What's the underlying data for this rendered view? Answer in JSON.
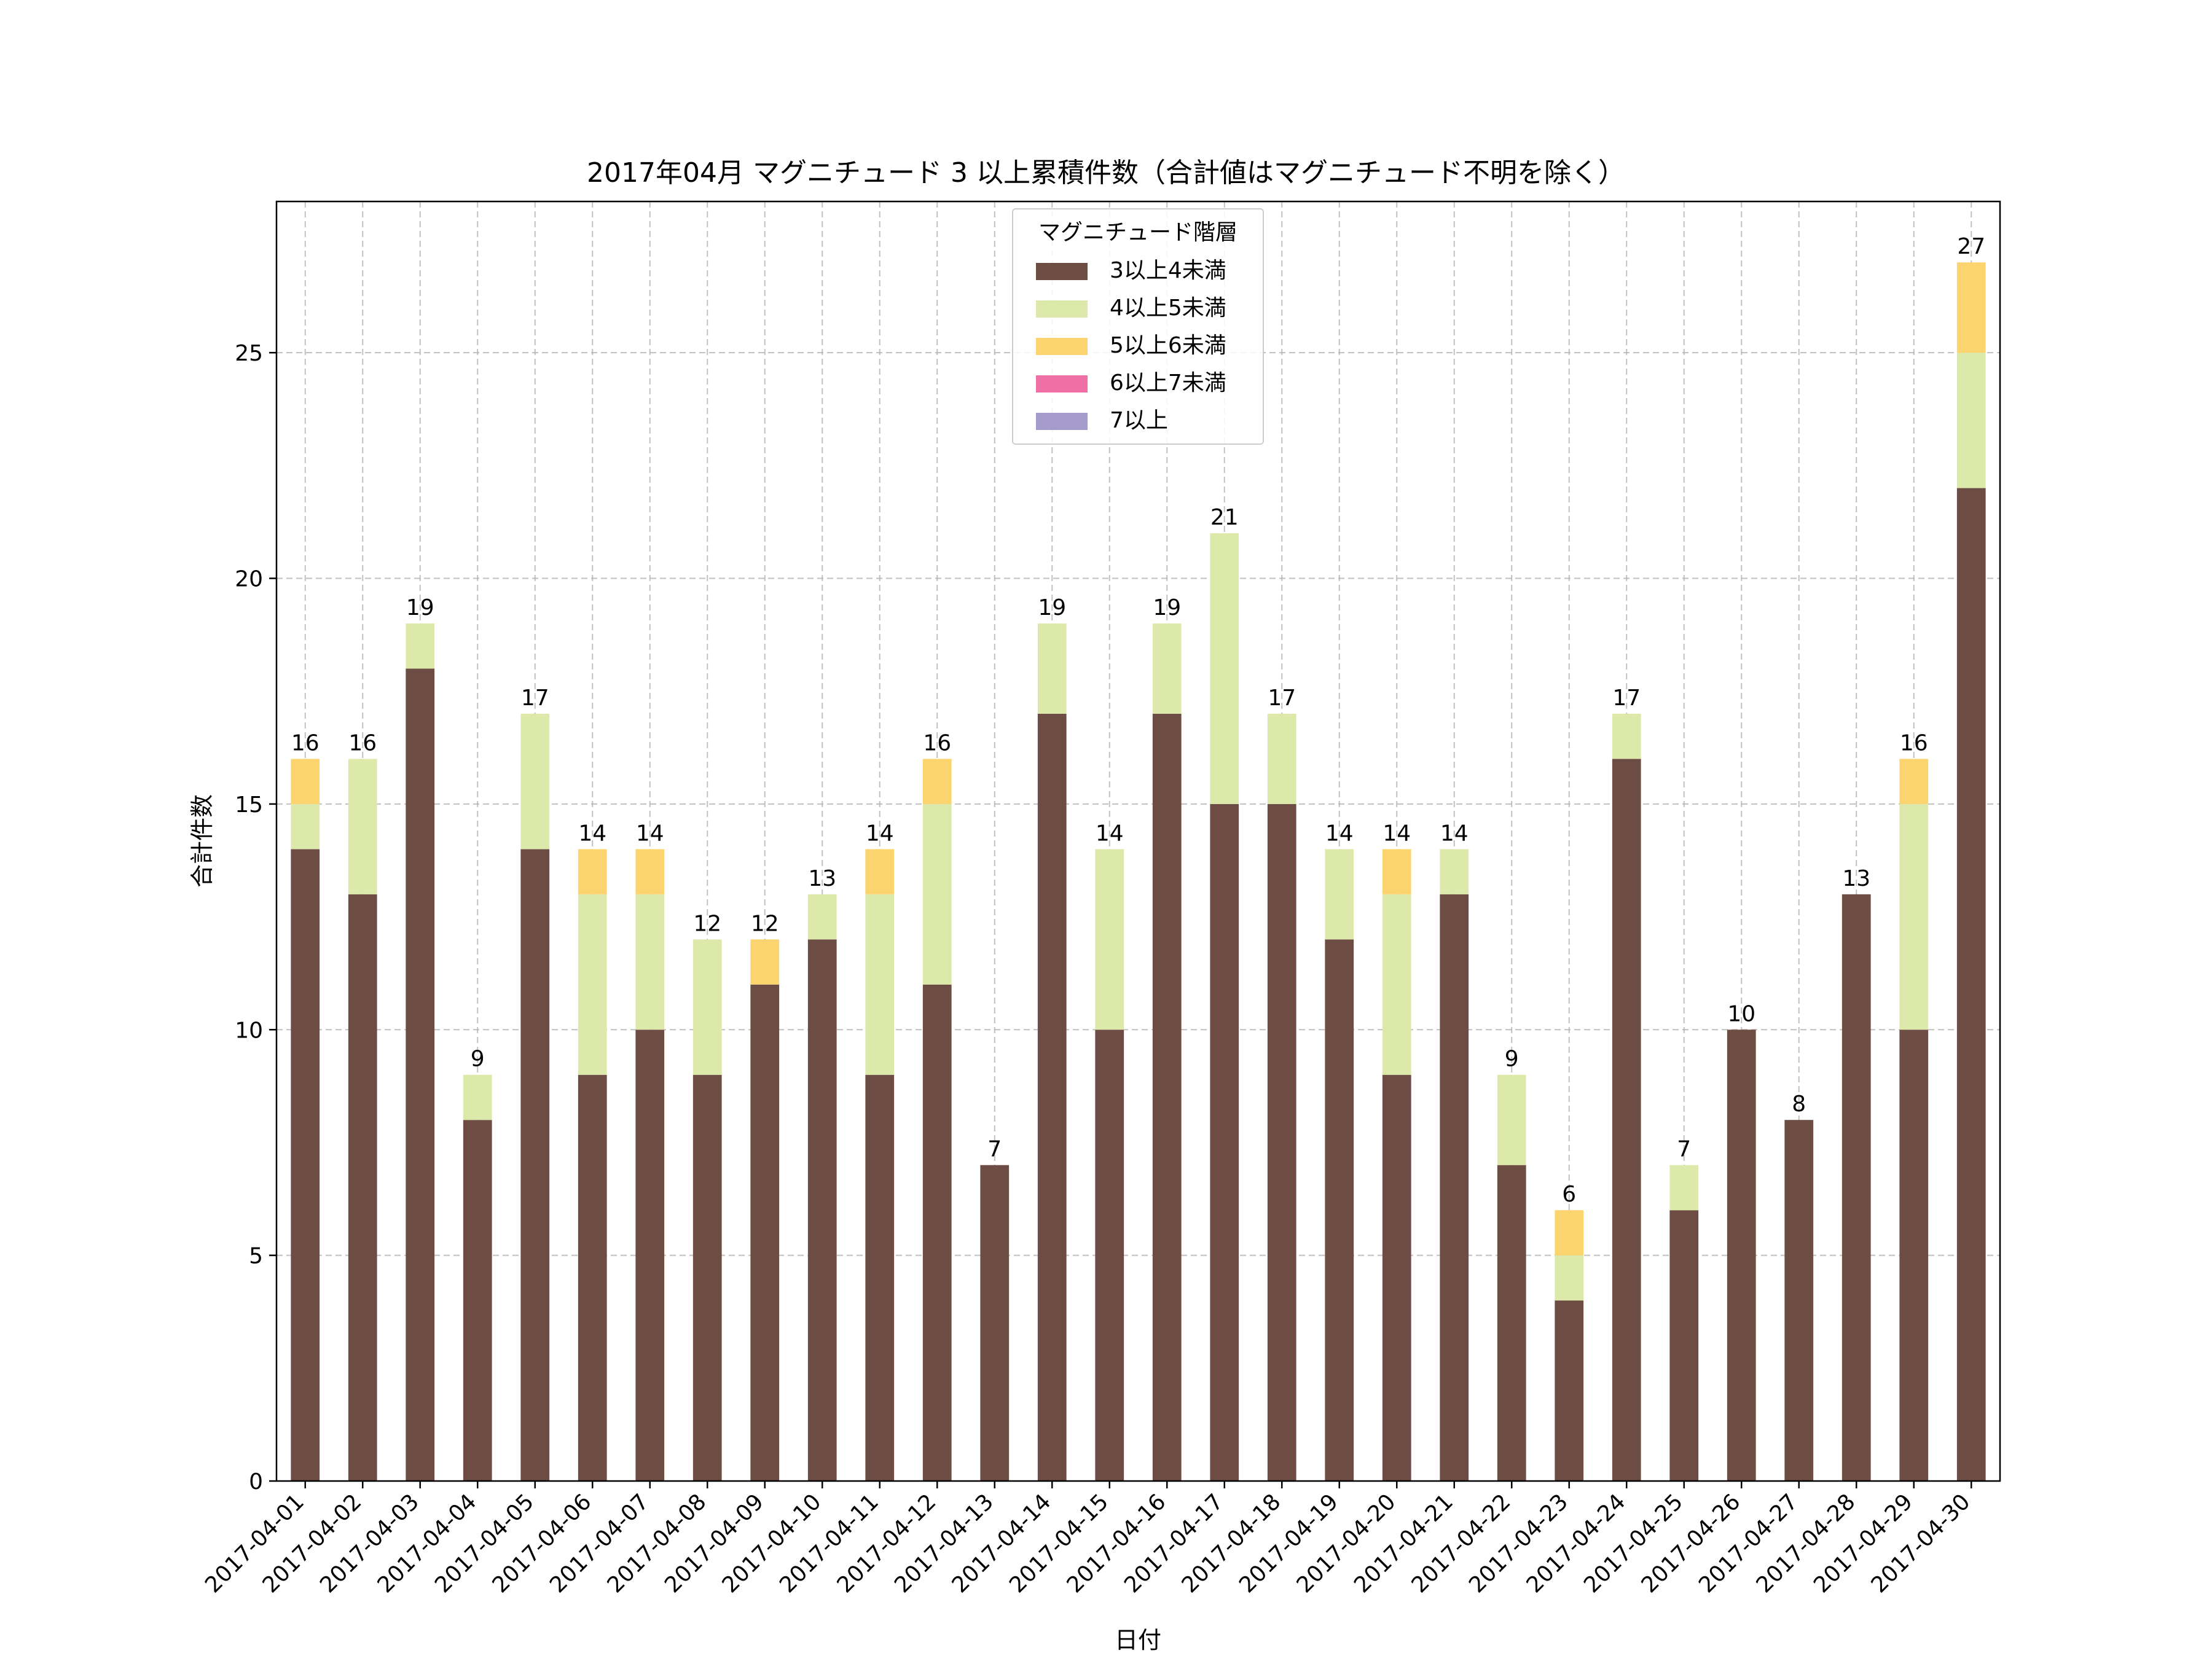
{
  "chart_data": {
    "type": "bar",
    "stacked": true,
    "title": "2017年04月 マグニチュード 3 以上累積件数（合計値はマグニチュード不明を除く）",
    "xlabel": "日付",
    "ylabel": "合計件数",
    "ylim": [
      0,
      28.35
    ],
    "yticks": [
      0,
      5,
      10,
      15,
      20,
      25
    ],
    "grid": true,
    "legend": {
      "title": "マグニチュード階層",
      "placement": "top-center"
    },
    "categories": [
      "2017-04-01",
      "2017-04-02",
      "2017-04-03",
      "2017-04-04",
      "2017-04-05",
      "2017-04-06",
      "2017-04-07",
      "2017-04-08",
      "2017-04-09",
      "2017-04-10",
      "2017-04-11",
      "2017-04-12",
      "2017-04-13",
      "2017-04-14",
      "2017-04-15",
      "2017-04-16",
      "2017-04-17",
      "2017-04-18",
      "2017-04-19",
      "2017-04-20",
      "2017-04-21",
      "2017-04-22",
      "2017-04-23",
      "2017-04-24",
      "2017-04-25",
      "2017-04-26",
      "2017-04-27",
      "2017-04-28",
      "2017-04-29",
      "2017-04-30"
    ],
    "series": [
      {
        "name": "3以上4未満",
        "color": "#6d4c44",
        "values": [
          14,
          13,
          18,
          8,
          14,
          9,
          10,
          9,
          11,
          12,
          9,
          11,
          7,
          17,
          10,
          17,
          15,
          15,
          12,
          9,
          13,
          7,
          4,
          16,
          6,
          10,
          8,
          13,
          10,
          22
        ]
      },
      {
        "name": "4以上5未満",
        "color": "#dde9ab",
        "values": [
          1,
          3,
          1,
          1,
          3,
          4,
          3,
          3,
          0,
          1,
          4,
          4,
          0,
          2,
          4,
          2,
          6,
          2,
          2,
          4,
          1,
          2,
          1,
          1,
          1,
          0,
          0,
          0,
          5,
          3
        ]
      },
      {
        "name": "5以上6未満",
        "color": "#fbd46f",
        "values": [
          1,
          0,
          0,
          0,
          0,
          1,
          1,
          0,
          1,
          0,
          1,
          1,
          0,
          0,
          0,
          0,
          0,
          0,
          0,
          1,
          0,
          0,
          1,
          0,
          0,
          0,
          0,
          0,
          1,
          2
        ]
      },
      {
        "name": "6以上7未満",
        "color": "#f06fa5",
        "values": [
          0,
          0,
          0,
          0,
          0,
          0,
          0,
          0,
          0,
          0,
          0,
          0,
          0,
          0,
          0,
          0,
          0,
          0,
          0,
          0,
          0,
          0,
          0,
          0,
          0,
          0,
          0,
          0,
          0,
          0
        ]
      },
      {
        "name": "7以上",
        "color": "#a59bcb",
        "values": [
          0,
          0,
          0,
          0,
          0,
          0,
          0,
          0,
          0,
          0,
          0,
          0,
          0,
          0,
          0,
          0,
          0,
          0,
          0,
          0,
          0,
          0,
          0,
          0,
          0,
          0,
          0,
          0,
          0,
          0
        ]
      }
    ],
    "totals": [
      16,
      16,
      19,
      9,
      17,
      14,
      14,
      12,
      12,
      13,
      14,
      16,
      7,
      19,
      14,
      19,
      21,
      17,
      14,
      14,
      14,
      9,
      6,
      17,
      7,
      10,
      8,
      13,
      16,
      27
    ]
  }
}
